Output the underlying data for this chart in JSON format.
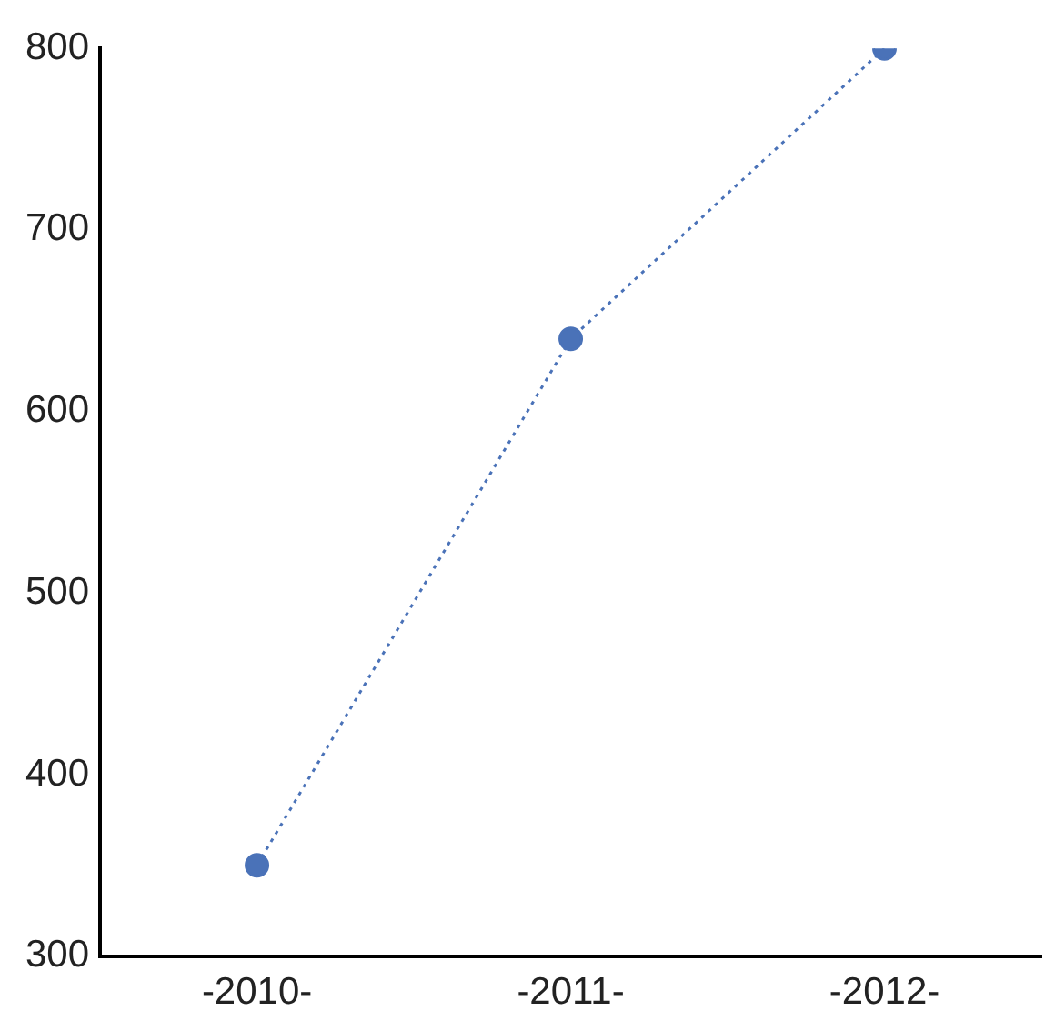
{
  "chart_data": {
    "type": "line",
    "categories": [
      "-2010-",
      "-2011-",
      "-2012-"
    ],
    "values": [
      350,
      640,
      800
    ],
    "color": "#4a72b8",
    "ylim": [
      300,
      800
    ],
    "yticks": [
      300,
      400,
      500,
      600,
      700,
      800
    ],
    "marker": "circle",
    "line_style": "dotted"
  }
}
